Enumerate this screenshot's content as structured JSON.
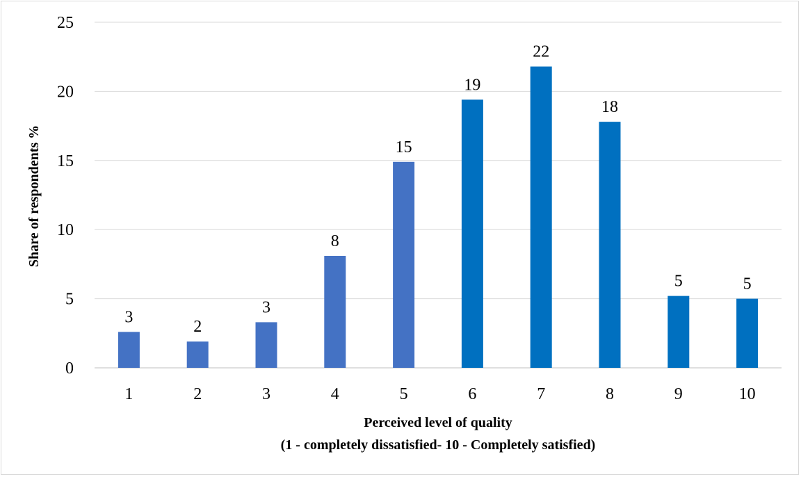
{
  "chart_data": {
    "type": "bar",
    "categories": [
      "1",
      "2",
      "3",
      "4",
      "5",
      "6",
      "7",
      "8",
      "9",
      "10"
    ],
    "values": [
      2.6,
      1.9,
      3.3,
      8.1,
      14.9,
      19.4,
      21.8,
      17.8,
      5.2,
      5.0
    ],
    "data_labels": [
      "3",
      "2",
      "3",
      "8",
      "15",
      "19",
      "22",
      "18",
      "5",
      "5"
    ],
    "bar_colors": [
      "#4472c4",
      "#4472c4",
      "#4472c4",
      "#4472c4",
      "#4472c4",
      "#0070c0",
      "#0070c0",
      "#0070c0",
      "#0070c0",
      "#0070c0"
    ],
    "ylim": [
      0,
      25
    ],
    "yticks": [
      "0",
      "5",
      "10",
      "15",
      "20",
      "25"
    ],
    "ylabel": "Share of respondents %",
    "xlabel_line1": "Perceived level of quality",
    "xlabel_line2": "(1 - completely dissatisfied- 10 - Completely satisfied)",
    "grid": true
  }
}
